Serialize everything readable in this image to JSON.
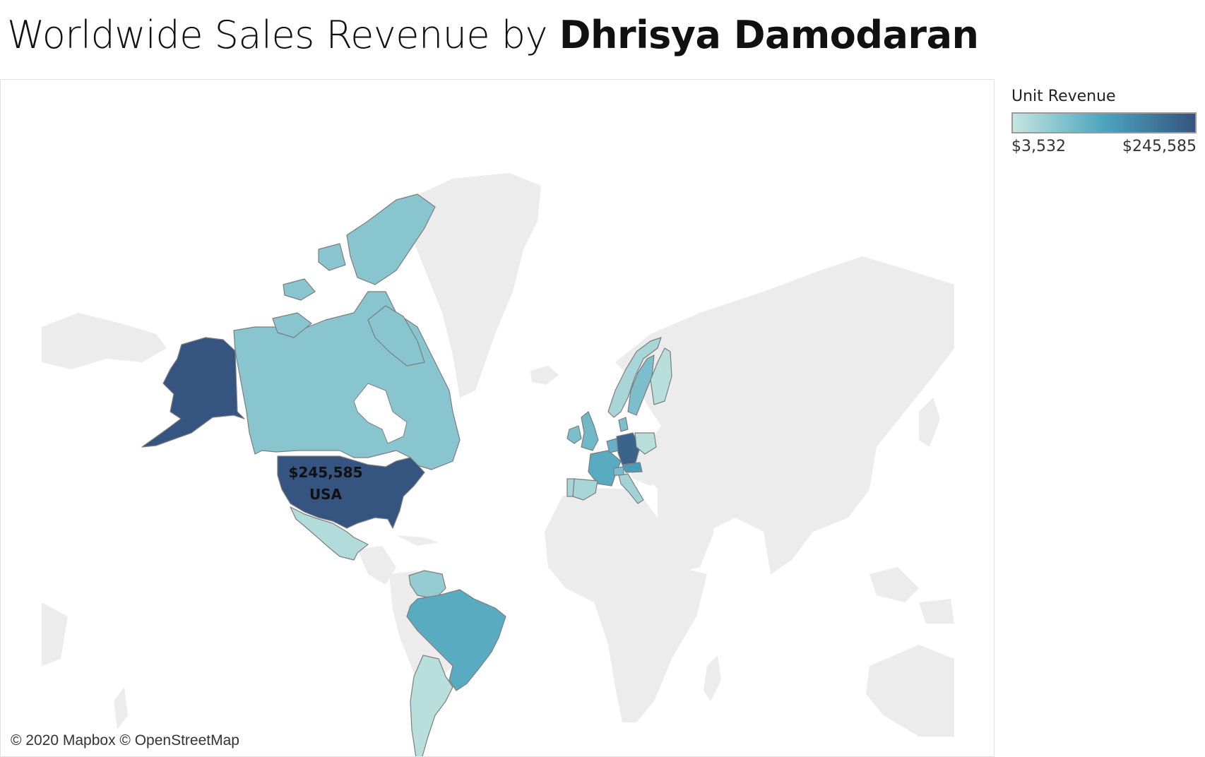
{
  "title": {
    "prefix": "Worldwide Sales Revenue by",
    "author": "Dhrisya Damodaran"
  },
  "legend": {
    "title": "Unit Revenue",
    "min_label": "$3,532",
    "max_label": "$245,585",
    "min_value": 3532,
    "max_value": 245585,
    "color_low": "#c5e5e0",
    "color_high": "#35547f"
  },
  "map": {
    "attribution": "© 2020 Mapbox © OpenStreetMap",
    "land_color": "#ececec",
    "water_color": "#ffffff",
    "highlight": {
      "value_label": "$245,585",
      "country_label": "USA"
    },
    "countries": [
      {
        "id": "usa",
        "name": "USA",
        "level": 1.0
      },
      {
        "id": "alaska",
        "name": "USA",
        "level": 1.0
      },
      {
        "id": "canada",
        "name": "Canada",
        "level": 0.25
      },
      {
        "id": "mexico",
        "name": "Mexico",
        "level": 0.08
      },
      {
        "id": "venezuela",
        "name": "Venezuela",
        "level": 0.2
      },
      {
        "id": "brazil",
        "name": "Brazil",
        "level": 0.45
      },
      {
        "id": "argentina",
        "name": "Argentina",
        "level": 0.05
      },
      {
        "id": "germany",
        "name": "Germany",
        "level": 0.9
      },
      {
        "id": "france",
        "name": "France",
        "level": 0.45
      },
      {
        "id": "uk",
        "name": "UK",
        "level": 0.35
      },
      {
        "id": "ireland",
        "name": "Ireland",
        "level": 0.3
      },
      {
        "id": "spain",
        "name": "Spain",
        "level": 0.12
      },
      {
        "id": "portugal",
        "name": "Portugal",
        "level": 0.12
      },
      {
        "id": "italy",
        "name": "Italy",
        "level": 0.15
      },
      {
        "id": "poland",
        "name": "Poland",
        "level": 0.05
      },
      {
        "id": "austria",
        "name": "Austria",
        "level": 0.55
      },
      {
        "id": "switzerland",
        "name": "Switzerland",
        "level": 0.3
      },
      {
        "id": "norway",
        "name": "Norway",
        "level": 0.12
      },
      {
        "id": "sweden",
        "name": "Sweden",
        "level": 0.3
      },
      {
        "id": "finland",
        "name": "Finland",
        "level": 0.05
      },
      {
        "id": "denmark",
        "name": "Denmark",
        "level": 0.3
      },
      {
        "id": "benelux",
        "name": "Netherlands",
        "level": 0.4
      }
    ]
  }
}
